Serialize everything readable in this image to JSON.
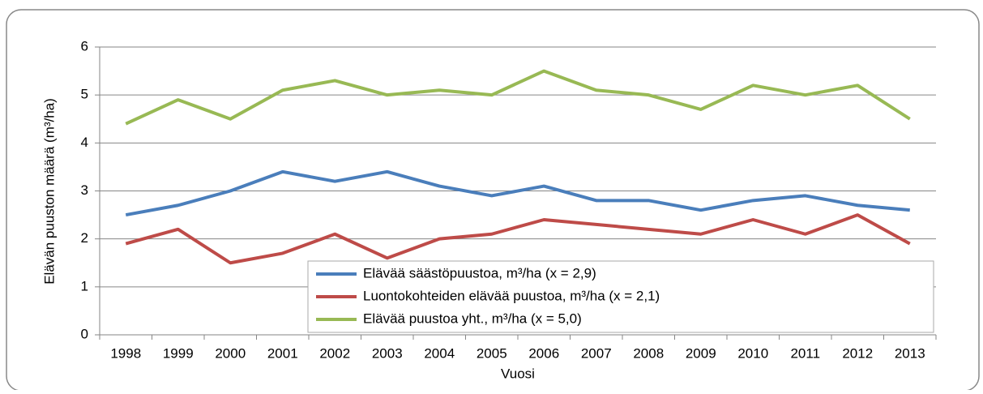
{
  "chart_data": {
    "type": "line",
    "x_label": "Vuosi",
    "y_label": "Elävän puuston määrä (m³/ha)",
    "categories": [
      "1998",
      "1999",
      "2000",
      "2001",
      "2002",
      "2003",
      "2004",
      "2005",
      "2006",
      "2007",
      "2008",
      "2009",
      "2010",
      "2011",
      "2012",
      "2013"
    ],
    "series": [
      {
        "name": "Elävää säästöpuustoa, m³/ha (x = 2,9)",
        "color": "#4a7ebb",
        "values": [
          2.5,
          2.7,
          3.0,
          3.4,
          3.2,
          3.4,
          3.1,
          2.9,
          3.1,
          2.8,
          2.8,
          2.6,
          2.8,
          2.9,
          2.7,
          2.6
        ]
      },
      {
        "name": "Luontokohteiden elävää puustoa, m³/ha (x = 2,1)",
        "color": "#be4b48",
        "values": [
          1.9,
          2.2,
          1.5,
          1.7,
          2.1,
          1.6,
          2.0,
          2.1,
          2.4,
          2.3,
          2.2,
          2.1,
          2.4,
          2.1,
          2.5,
          1.9
        ]
      },
      {
        "name": "Elävää puustoa yht., m³/ha (x = 5,0)",
        "color": "#98b954",
        "values": [
          4.4,
          4.9,
          4.5,
          5.1,
          5.3,
          5.0,
          5.1,
          5.0,
          5.5,
          5.1,
          5.0,
          4.7,
          5.2,
          5.0,
          5.2,
          4.5
        ]
      }
    ],
    "ylim": [
      0,
      6
    ],
    "yticks": [
      0,
      1,
      2,
      3,
      4,
      5,
      6
    ],
    "grid": true,
    "legend": "lower right"
  }
}
